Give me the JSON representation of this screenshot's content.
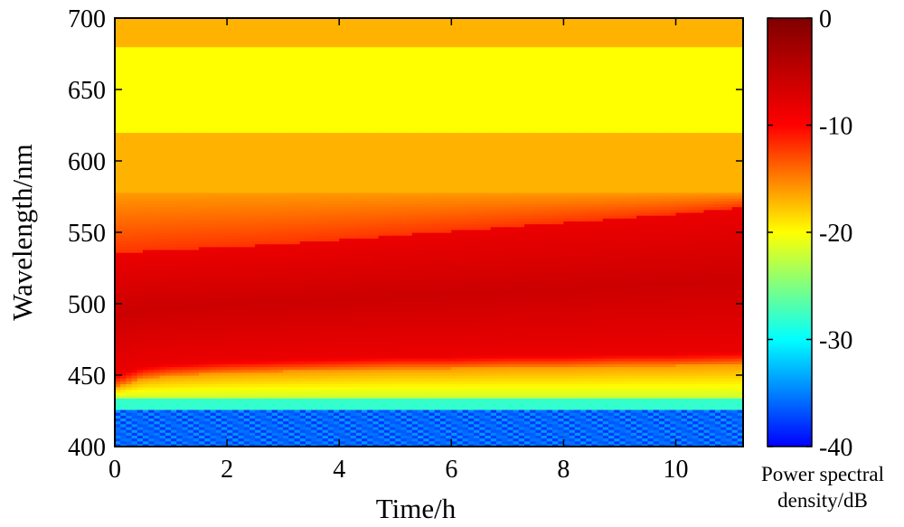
{
  "chart_data": {
    "type": "heatmap",
    "title": "",
    "xlabel": "Time/h",
    "ylabel": "Wavelength/nm",
    "xlim": [
      0,
      11.2
    ],
    "ylim": [
      400,
      700
    ],
    "x_ticks": [
      0,
      2,
      4,
      6,
      8,
      10
    ],
    "y_ticks": [
      400,
      450,
      500,
      550,
      600,
      650,
      700
    ],
    "colorbar": {
      "label_line1": "Power spectral",
      "label_line2": "density/dB",
      "range": [
        -40,
        0
      ],
      "ticks": [
        0,
        -10,
        -20,
        -30,
        -40
      ],
      "colormap": "jet"
    },
    "time_samples_h": [
      0,
      0.5,
      1,
      2,
      3,
      4,
      5,
      6,
      7,
      8,
      9,
      10,
      11.2
    ],
    "bands": {
      "description_free_values_only": true,
      "noise_floor_top_nm": [
        427,
        427,
        427,
        427,
        427,
        427,
        427,
        427,
        427,
        427,
        427,
        427,
        427
      ],
      "strong_emission_lower_edge_nm": [
        450,
        456,
        458,
        460,
        461,
        462,
        463,
        463,
        464,
        464,
        465,
        465,
        466
      ],
      "strong_emission_upper_edge_nm": [
        535,
        537,
        538,
        540,
        542,
        545,
        548,
        551,
        554,
        557,
        560,
        563,
        568
      ],
      "orange_upper_edge_nm": [
        578,
        578,
        578,
        578,
        578,
        578,
        578,
        578,
        578,
        578,
        578,
        578,
        578
      ],
      "peak_level_db": -6,
      "band_level_db": -8,
      "transition_level_db": -15,
      "upper_plateau_level_db": -17,
      "mid_green_level_db": -20,
      "low_green_level_db": -22,
      "cyan_level_db": -28,
      "noise_floor_level_db": -36
    }
  }
}
